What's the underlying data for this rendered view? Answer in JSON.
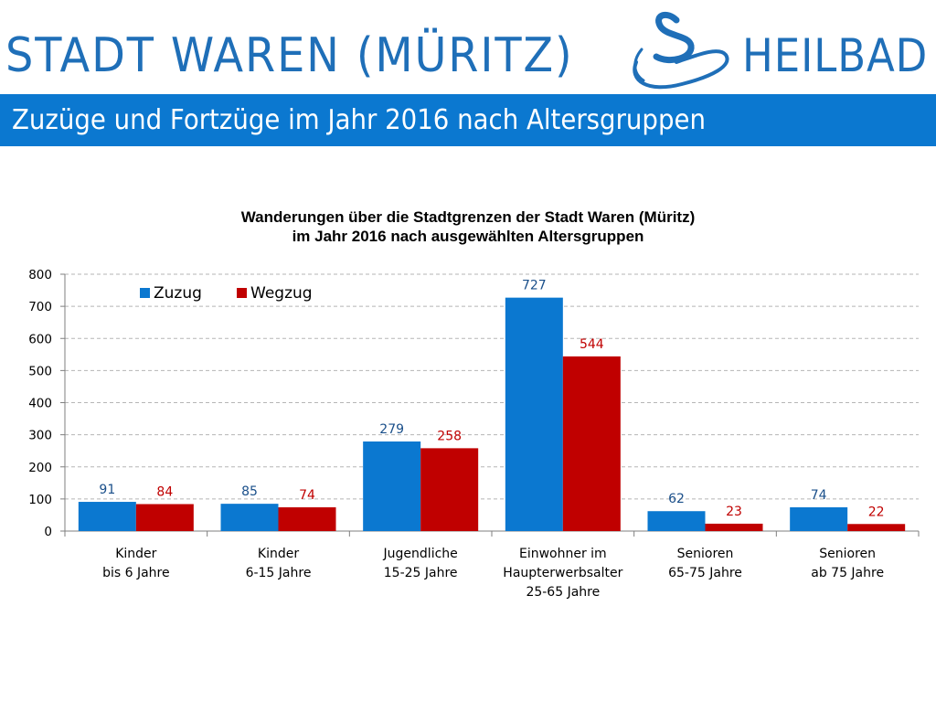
{
  "header": {
    "brand_name": "STADT WAREN (MÜRITZ)",
    "brand_suffix": "HEILBAD",
    "logo_icon": "swan-logo-icon",
    "brand_color": "#1f6fb8"
  },
  "slide": {
    "title": "Zuzüge und Fortzüge im Jahr 2016 nach Altersgruppen",
    "title_bar_color": "#0b78d0"
  },
  "chart_data": {
    "type": "bar",
    "title": "Wanderungen über die Stadtgrenzen der Stadt Waren (Müritz)",
    "subtitle": "im Jahr 2016 nach ausgewählten Altersgruppen",
    "xlabel": "",
    "ylabel": "",
    "ylim": [
      0,
      800
    ],
    "yticks": [
      0,
      100,
      200,
      300,
      400,
      500,
      600,
      700,
      800
    ],
    "grid": true,
    "legend_position": "top-left",
    "categories": [
      [
        "Kinder",
        "bis 6 Jahre"
      ],
      [
        "Kinder",
        "6-15 Jahre"
      ],
      [
        "Jugendliche",
        "15-25 Jahre"
      ],
      [
        "Einwohner im",
        "Haupterwerbsalter",
        "25-65 Jahre"
      ],
      [
        "Senioren",
        "65-75 Jahre"
      ],
      [
        "Senioren",
        "ab 75 Jahre"
      ]
    ],
    "series": [
      {
        "name": "Zuzug",
        "color": "#0b78d0",
        "label_color": "#1a4f8a",
        "values": [
          91,
          85,
          279,
          727,
          62,
          74
        ]
      },
      {
        "name": "Wegzug",
        "color": "#c00000",
        "label_color": "#c00000",
        "values": [
          84,
          74,
          258,
          544,
          23,
          22
        ]
      }
    ]
  }
}
